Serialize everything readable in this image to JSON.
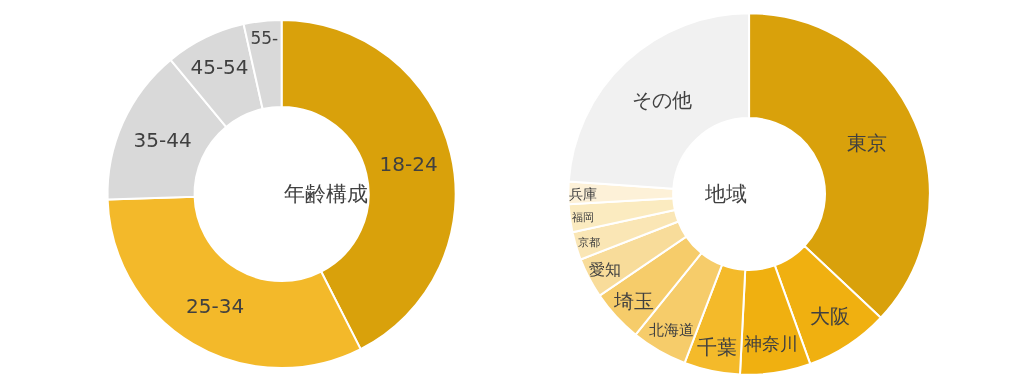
{
  "chart_data": [
    {
      "type": "donut",
      "title": "年齢構成",
      "categories": [
        "18-24",
        "25-34",
        "35-44",
        "45-54",
        "55-"
      ],
      "values": [
        42.5,
        32,
        14.5,
        7.5,
        3.5
      ],
      "colors": [
        "#d9a10b",
        "#f3b92a",
        "#d9d9d9",
        "#d9d9d9",
        "#d9d9d9"
      ],
      "legend": false
    },
    {
      "type": "donut",
      "title": "地域",
      "categories": [
        "東京",
        "大阪",
        "神奈川",
        "千葉",
        "北海道",
        "埼玉",
        "愛知",
        "京都",
        "福岡",
        "兵庫",
        "その他"
      ],
      "values": [
        37,
        7.5,
        6.3,
        5,
        5,
        4.7,
        3.6,
        2.5,
        2.5,
        2,
        23.9
      ],
      "colors": [
        "#d9a10b",
        "#f0b010",
        "#f0b010",
        "#f4ba2a",
        "#f6cc6a",
        "#f6cc6a",
        "#f8dc9a",
        "#fae6b5",
        "#fbebc0",
        "#fdf1d8",
        "#f1f1f1"
      ],
      "legend": false
    }
  ]
}
